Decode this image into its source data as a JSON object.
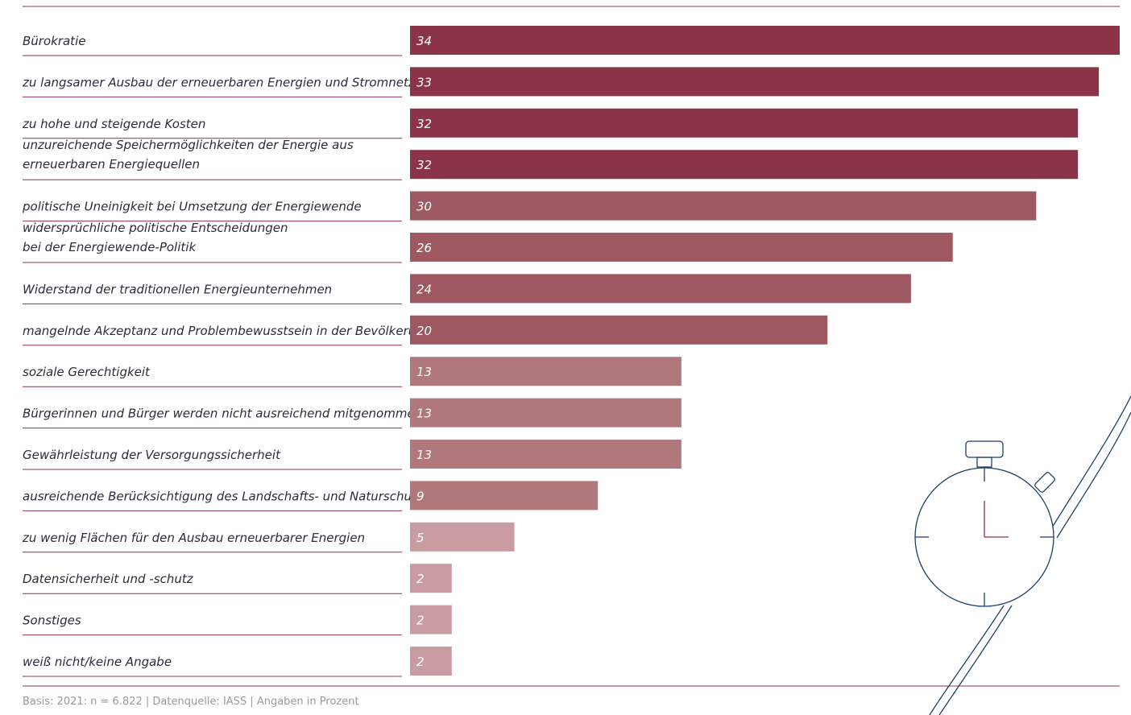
{
  "chart_data": {
    "type": "bar",
    "orientation": "horizontal",
    "categories": [
      [
        "Bürokratie"
      ],
      [
        "zu langsamer Ausbau der erneuerbaren Energien und Stromnetze"
      ],
      [
        "zu hohe und steigende Kosten"
      ],
      [
        "unzureichende Speichermöglichkeiten der Energie aus",
        "erneuerbaren Energiequellen"
      ],
      [
        "politische Uneinigkeit bei Umsetzung der Energiewende"
      ],
      [
        "widersprüchliche politische Entscheidungen",
        "bei der Energiewende-Politik"
      ],
      [
        "Widerstand der traditionellen Energieunternehmen"
      ],
      [
        "mangelnde Akzeptanz und Problembewusstsein in der Bevölkerung"
      ],
      [
        "soziale Gerechtigkeit"
      ],
      [
        "Bürgerinnen und Bürger werden nicht ausreichend mitgenommen"
      ],
      [
        "Gewährleistung der Versorgungssicherheit"
      ],
      [
        "ausreichende Berücksichtigung des Landschafts- und Naturschutzes"
      ],
      [
        "zu wenig Flächen für den Ausbau erneuerbarer Energien"
      ],
      [
        "Datensicherheit und -schutz"
      ],
      [
        "Sonstiges"
      ],
      [
        "weiß nicht/keine Angabe"
      ]
    ],
    "values": [
      34,
      33,
      32,
      32,
      30,
      26,
      24,
      20,
      13,
      13,
      13,
      9,
      5,
      2,
      2,
      2
    ],
    "value_labels": [
      "34",
      "33",
      "32",
      "32",
      "30",
      "26",
      "24",
      "20",
      "13",
      "13",
      "13",
      "9",
      "5",
      "2",
      "2",
      "2"
    ],
    "xlim": [
      0,
      34
    ],
    "grid": false,
    "colors": {
      "tier1": "#8b3448",
      "tier2": "#9e5862",
      "tier3": "#b0787d",
      "tier4": "#c99ca2",
      "rule": "#8b3448",
      "icon": "#1e3f66"
    },
    "bar_tiers": [
      1,
      1,
      1,
      1,
      2,
      2,
      2,
      2,
      3,
      3,
      3,
      3,
      4,
      4,
      4,
      4
    ]
  },
  "footnote": "Basis: 2021: n = 6.822 | Datenquelle: IASS | Angaben in Prozent",
  "decoration": {
    "icon": "stopwatch-icon"
  }
}
